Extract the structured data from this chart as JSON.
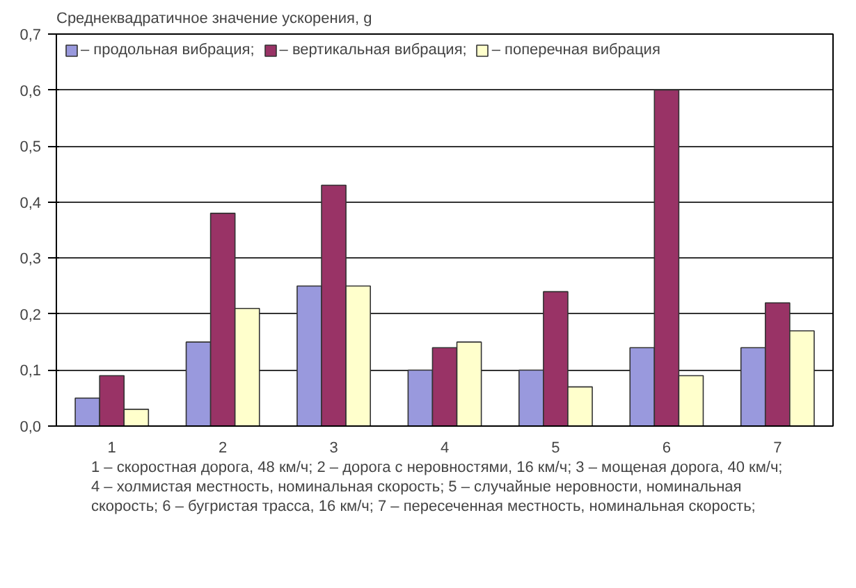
{
  "chart_data": {
    "type": "bar",
    "ylabel": "Среднеквадратичное значение ускорения, g",
    "categories": [
      "1",
      "2",
      "3",
      "4",
      "5",
      "6",
      "7"
    ],
    "series": [
      {
        "name": "– продольная вибрация;",
        "color": "#9999dd",
        "values": [
          0.05,
          0.15,
          0.25,
          0.1,
          0.1,
          0.14,
          0.14
        ]
      },
      {
        "name": "– вертикальная вибрация;",
        "color": "#993366",
        "values": [
          0.09,
          0.38,
          0.43,
          0.14,
          0.24,
          0.6,
          0.22
        ]
      },
      {
        "name": "– поперечная вибрация",
        "color": "#ffffcc",
        "values": [
          0.03,
          0.21,
          0.25,
          0.15,
          0.07,
          0.09,
          0.17
        ]
      }
    ],
    "ylim": [
      0,
      0.7
    ],
    "yticks": [
      {
        "value": 0,
        "label": "0,0"
      },
      {
        "value": 0.1,
        "label": "0,1"
      },
      {
        "value": 0.2,
        "label": "0,2"
      },
      {
        "value": 0.3,
        "label": "0,3"
      },
      {
        "value": 0.4,
        "label": "0,4"
      },
      {
        "value": 0.5,
        "label": "0,5"
      },
      {
        "value": 0.6,
        "label": "0,6"
      },
      {
        "value": 0.7,
        "label": "0,7"
      }
    ],
    "grid": "y",
    "legend": "top left",
    "annotations": [
      "1 – скоростная дорога, 48 км/ч; 2 – дорога с неровностями, 16 км/ч; 3 – мощеная дорога, 40 км/ч;",
      "4 – холмистая местность, номинальная скорость; 5 – случайные неровности, номинальная",
      "скорость; 6 – бугристая трасса, 16 км/ч; 7 – пересеченная местность, номинальная скорость;"
    ]
  }
}
